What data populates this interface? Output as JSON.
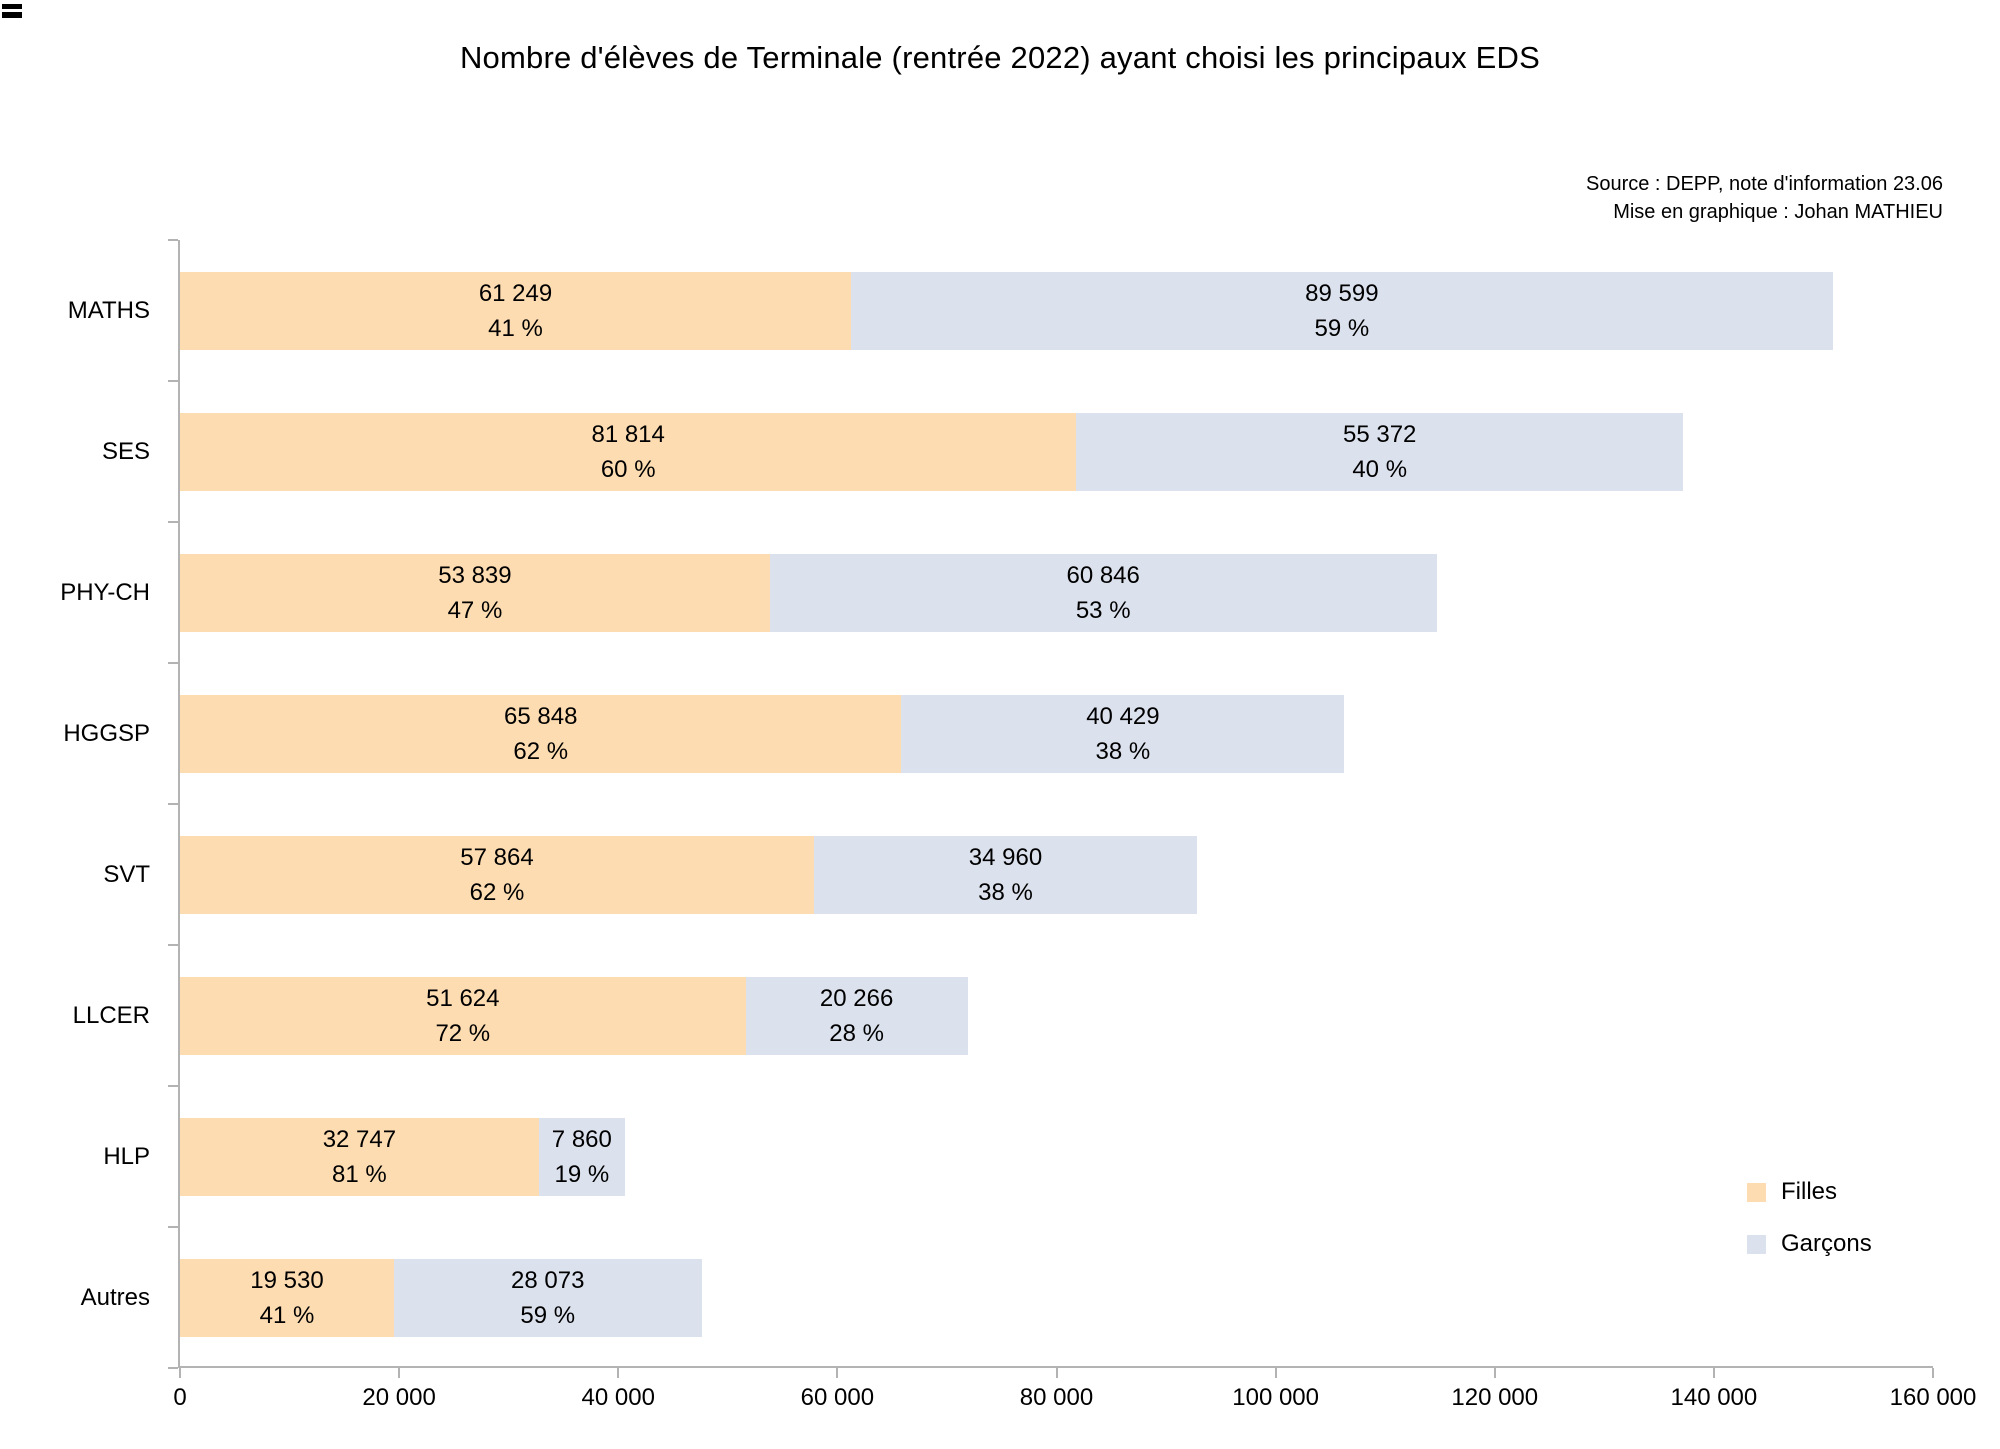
{
  "title": "Nombre d'élèves de Terminale (rentrée 2022) ayant choisi les principaux EDS",
  "source": {
    "line1": "Source : DEPP, note d'information 23.06",
    "line2": "Mise en graphique : Johan MATHIEU"
  },
  "chart_data": {
    "type": "bar",
    "orientation": "horizontal",
    "stacked": true,
    "title": "Nombre d'élèves de Terminale (rentrée 2022) ayant choisi les principaux EDS",
    "categories": [
      "MATHS",
      "SES",
      "PHY-CH",
      "HGGSP",
      "SVT",
      "LLCER",
      "HLP",
      "Autres"
    ],
    "series": [
      {
        "name": "Filles",
        "color": "#FDDCB2",
        "values": [
          61249,
          81814,
          53839,
          65848,
          57864,
          51624,
          32747,
          19530
        ],
        "percents": [
          41,
          60,
          47,
          62,
          62,
          72,
          81,
          41
        ],
        "labels": [
          [
            "61 249",
            "41 %"
          ],
          [
            "81 814",
            "60 %"
          ],
          [
            "53 839",
            "47 %"
          ],
          [
            "65 848",
            "62 %"
          ],
          [
            "57 864",
            "62 %"
          ],
          [
            "51 624",
            "72 %"
          ],
          [
            "32 747",
            "81 %"
          ],
          [
            "19 530",
            "41 %"
          ]
        ]
      },
      {
        "name": "Garçons",
        "color": "#DBE1ED",
        "values": [
          89599,
          55372,
          60846,
          40429,
          34960,
          20266,
          7860,
          28073
        ],
        "percents": [
          59,
          40,
          53,
          38,
          38,
          28,
          19,
          59
        ],
        "labels": [
          [
            "89 599",
            "59 %"
          ],
          [
            "55 372",
            "40 %"
          ],
          [
            "60 846",
            "53 %"
          ],
          [
            "40 429",
            "38 %"
          ],
          [
            "34 960",
            "38 %"
          ],
          [
            "20 266",
            "28 %"
          ],
          [
            "7 860",
            "19 %"
          ],
          [
            "28 073",
            "59 %"
          ]
        ]
      }
    ],
    "xlim": [
      0,
      160000
    ],
    "x_ticks": [
      0,
      20000,
      40000,
      60000,
      80000,
      100000,
      120000,
      140000,
      160000
    ],
    "x_tick_labels": [
      "0",
      "20 000",
      "40 000",
      "60 000",
      "80 000",
      "100 000",
      "120 000",
      "140 000",
      "160 000"
    ],
    "grid": false,
    "legend": {
      "position": "right-bottom",
      "entries": [
        {
          "label": "Filles",
          "color": "#FDDCB2"
        },
        {
          "label": "Garçons",
          "color": "#DBE1ED"
        }
      ]
    },
    "axis_color": "#b3b3b3"
  }
}
